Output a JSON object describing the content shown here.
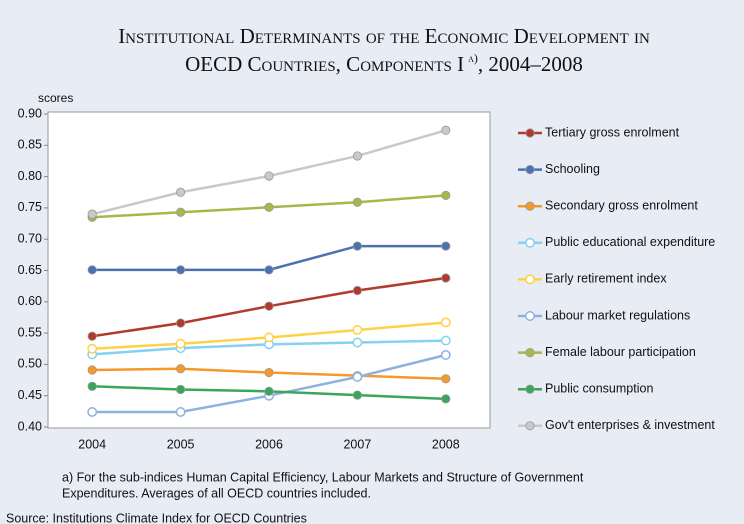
{
  "chart_data": {
    "type": "line",
    "title_line1": "Institutional Determinants of the Economic Development in",
    "title_line2": "OECD Countries, Components I",
    "title_note": "a)",
    "title_period": ", 2004–2008",
    "ylabel": "scores",
    "categories": [
      "2004",
      "2005",
      "2006",
      "2007",
      "2008"
    ],
    "ylim": [
      0.4,
      0.9
    ],
    "yticks": [
      {
        "value": 0.4,
        "label": "0.40"
      },
      0.45,
      {
        "value": 0.5,
        "label": "0.50"
      },
      0.55,
      {
        "value": 0.6,
        "label": "0.60"
      },
      0.65,
      {
        "value": 0.7,
        "label": "0.70"
      },
      0.75,
      {
        "value": 0.8,
        "label": "0.80"
      },
      0.85,
      {
        "value": 0.9,
        "label": "0.90"
      }
    ],
    "grid": false,
    "legend": "right",
    "series": [
      {
        "name": "Tertiary gross enrolment",
        "color": "#b23a2c",
        "hollow": false,
        "values": [
          0.545,
          0.566,
          0.593,
          0.618,
          0.638
        ]
      },
      {
        "name": "Schooling",
        "color": "#4a72b2",
        "hollow": false,
        "values": [
          0.651,
          0.651,
          0.651,
          0.689,
          0.689
        ]
      },
      {
        "name": "Secondary gross enrolment",
        "color": "#f39a2a",
        "hollow": false,
        "values": [
          0.491,
          0.493,
          0.487,
          0.482,
          0.477
        ]
      },
      {
        "name": "Public educational expenditure",
        "color": "#86d0f0",
        "hollow": true,
        "values": [
          0.516,
          0.526,
          0.532,
          0.535,
          0.538
        ]
      },
      {
        "name": "Early retirement index",
        "color": "#ffd145",
        "hollow": true,
        "values": [
          0.525,
          0.533,
          0.543,
          0.555,
          0.567
        ]
      },
      {
        "name": "Labour market regulations",
        "color": "#8fb1e0",
        "hollow": true,
        "values": [
          0.424,
          0.424,
          0.45,
          0.48,
          0.515
        ]
      },
      {
        "name": "Female labour participation",
        "color": "#a9b74a",
        "hollow": false,
        "values": [
          0.735,
          0.743,
          0.751,
          0.759,
          0.77
        ]
      },
      {
        "name": "Public consumption",
        "color": "#3aa65c",
        "hollow": false,
        "values": [
          0.465,
          0.46,
          0.457,
          0.451,
          0.445
        ]
      },
      {
        "name": "Gov't enterprises & investment",
        "color": "#c9c9c9",
        "hollow": false,
        "values": [
          0.74,
          0.775,
          0.801,
          0.833,
          0.874
        ]
      }
    ],
    "footnote_line1": "a) For the sub-indices Human Capital Efficiency, Labour Markets and Structure of Government",
    "footnote_line2": "Expenditures. Averages of all OECD countries included.",
    "source": "Source: Institutions Climate Index for OECD Countries"
  }
}
